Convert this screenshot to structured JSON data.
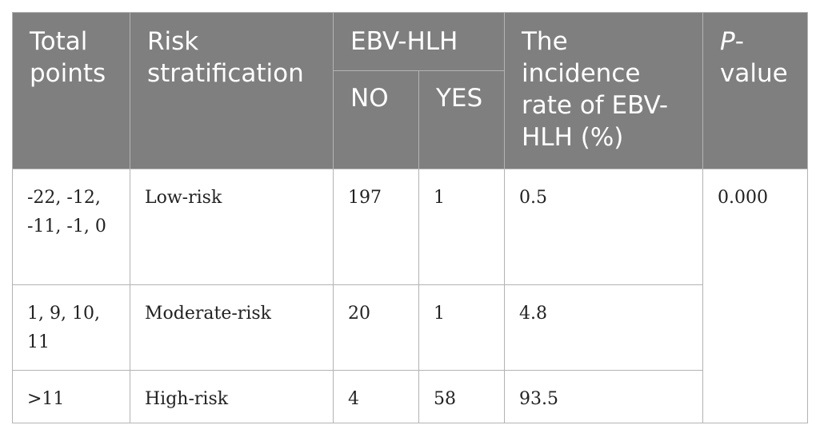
{
  "table": {
    "headers": {
      "total_points": "Total points",
      "risk_stratification": "Risk stratification",
      "ebv_hlh": "EBV-HLH",
      "no": "NO",
      "yes": "YES",
      "incidence_rate": "The incidence rate of EBV-HLH (%)",
      "p_prefix": "P",
      "p_suffix": "-value"
    },
    "rows": [
      {
        "total_points": "-22, -12, -11, -1, 0",
        "risk": "Low-risk",
        "no": "197",
        "yes": "1",
        "incidence": "0.5"
      },
      {
        "total_points": "1, 9, 10, 11",
        "risk": "Moderate-risk",
        "no": "20",
        "yes": "1",
        "incidence": "4.8"
      },
      {
        "total_points": ">11",
        "risk": "High-risk",
        "no": "4",
        "yes": "58",
        "incidence": "93.5"
      }
    ],
    "p_value": "0.000"
  }
}
